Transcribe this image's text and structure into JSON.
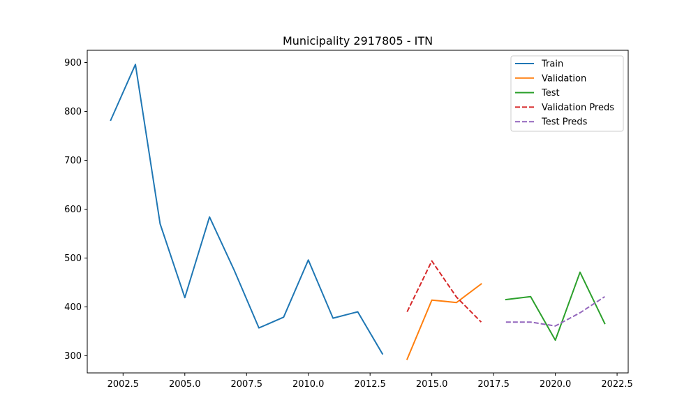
{
  "chart_data": {
    "type": "line",
    "title": "Municipality 2917805 - ITN",
    "xlabel": "",
    "ylabel": "",
    "xlim": [
      2001.05,
      2022.95
    ],
    "ylim": [
      265,
      925
    ],
    "x_ticks": [
      2002.5,
      2005.0,
      2007.5,
      2010.0,
      2012.5,
      2015.0,
      2017.5,
      2020.0,
      2022.5
    ],
    "x_tick_labels": [
      "2002.5",
      "2005.0",
      "2007.5",
      "2010.0",
      "2012.5",
      "2015.0",
      "2017.5",
      "2020.0",
      "2022.5"
    ],
    "y_ticks": [
      300,
      400,
      500,
      600,
      700,
      800,
      900
    ],
    "y_tick_labels": [
      "300",
      "400",
      "500",
      "600",
      "700",
      "800",
      "900"
    ],
    "grid": false,
    "legend_position": "top-right",
    "series": [
      {
        "name": "Train",
        "color": "#1f77b4",
        "dash": false,
        "x": [
          2002,
          2003,
          2004,
          2005,
          2006,
          2007,
          2008,
          2009,
          2010,
          2011,
          2012,
          2013
        ],
        "y": [
          782,
          896,
          570,
          419,
          584,
          475,
          357,
          379,
          496,
          377,
          390,
          304
        ]
      },
      {
        "name": "Validation",
        "color": "#ff7f0e",
        "dash": false,
        "x": [
          2014,
          2015,
          2016,
          2017
        ],
        "y": [
          293,
          414,
          409,
          447
        ]
      },
      {
        "name": "Test",
        "color": "#2ca02c",
        "dash": false,
        "x": [
          2018,
          2019,
          2020,
          2021,
          2022
        ],
        "y": [
          415,
          421,
          332,
          471,
          366
        ]
      },
      {
        "name": "Validation Preds",
        "color": "#d62728",
        "dash": true,
        "x": [
          2014,
          2015,
          2016,
          2017
        ],
        "y": [
          390,
          494,
          420,
          369
        ]
      },
      {
        "name": "Test Preds",
        "color": "#9467bd",
        "dash": true,
        "x": [
          2018,
          2019,
          2020,
          2021,
          2022
        ],
        "y": [
          369,
          369,
          361,
          388,
          421
        ]
      }
    ]
  }
}
